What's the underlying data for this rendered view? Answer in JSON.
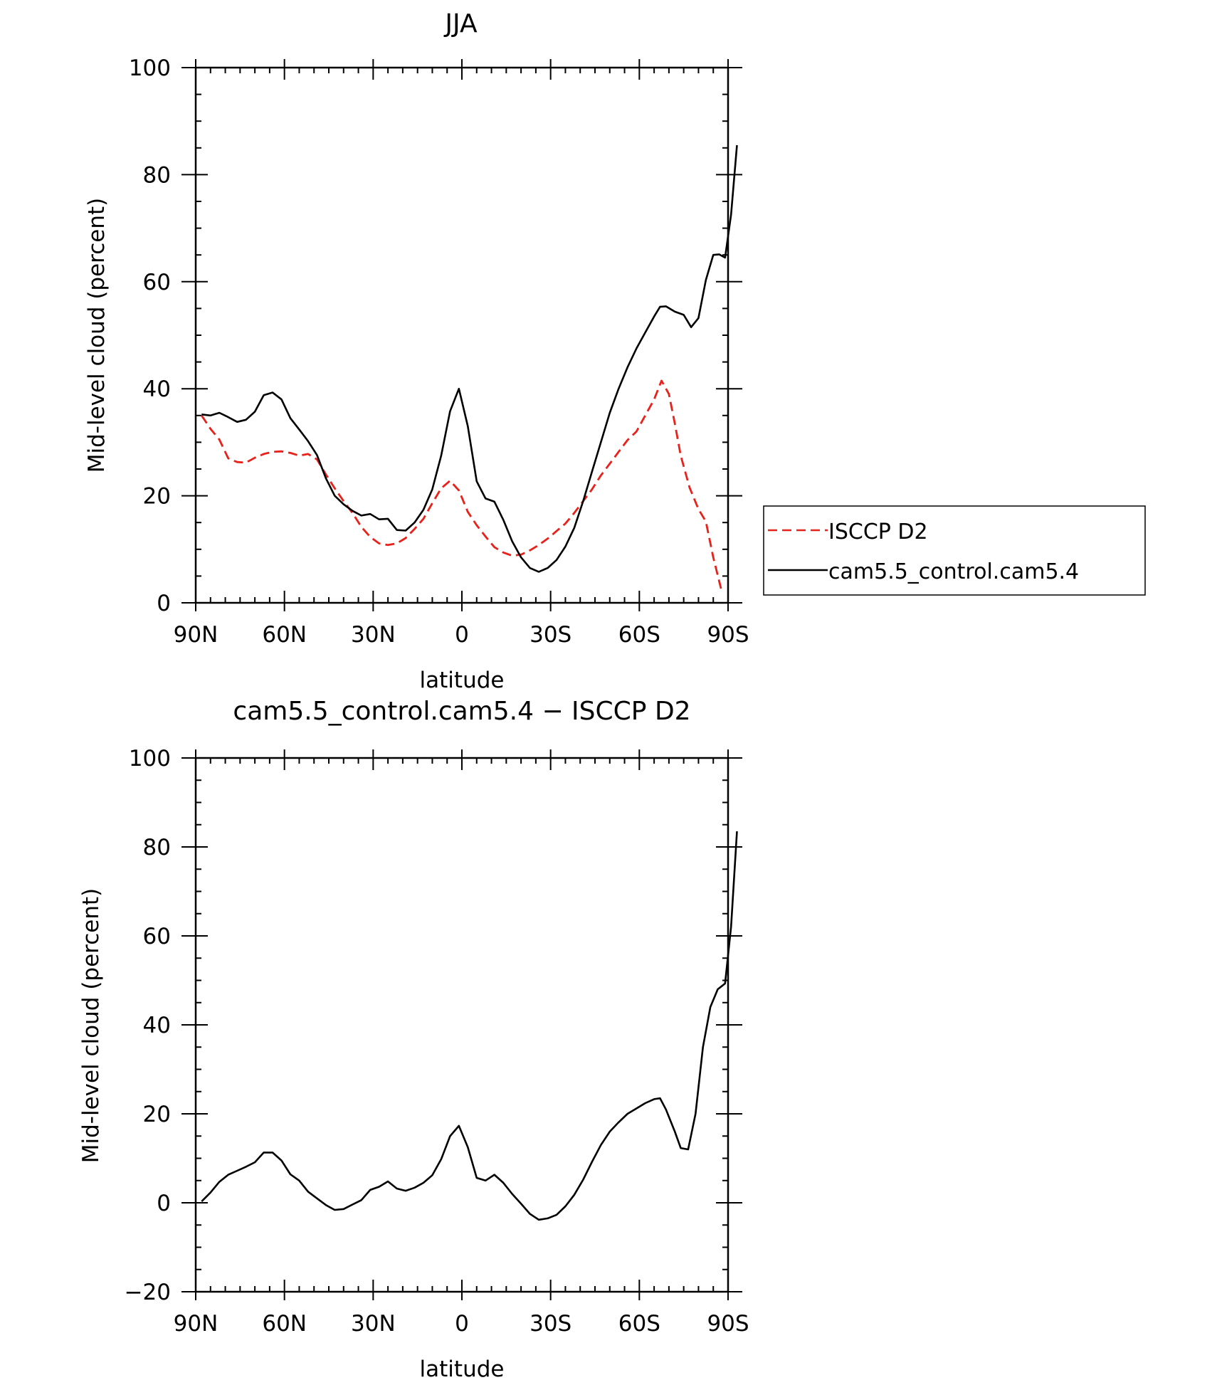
{
  "chart_data": [
    {
      "type": "line",
      "title": "JJA",
      "xlabel": "latitude",
      "ylabel": "Mid-level cloud (percent)",
      "xlim": [
        90,
        -90
      ],
      "ylim": [
        0,
        100
      ],
      "x_ticks": [
        {
          "value": 90,
          "label": "90N"
        },
        {
          "value": 60,
          "label": "60N"
        },
        {
          "value": 30,
          "label": "30N"
        },
        {
          "value": 0,
          "label": "0"
        },
        {
          "value": -30,
          "label": "30S"
        },
        {
          "value": -60,
          "label": "60S"
        },
        {
          "value": -90,
          "label": "90S"
        }
      ],
      "y_ticks": [
        0,
        20,
        40,
        60,
        80,
        100
      ],
      "legend_position": "right",
      "series": [
        {
          "name": "ISCCP D2",
          "color": "#e8211a",
          "dash": "dashed",
          "points": [
            [
              88,
              35
            ],
            [
              85,
              32.5
            ],
            [
              82,
              30.5
            ],
            [
              79,
              27
            ],
            [
              76,
              26.3
            ],
            [
              73,
              26.2
            ],
            [
              70,
              27.1
            ],
            [
              67,
              27.8
            ],
            [
              64,
              28.2
            ],
            [
              61,
              28.3
            ],
            [
              58,
              28
            ],
            [
              55,
              27.5
            ],
            [
              52,
              27.8
            ],
            [
              49,
              26.8
            ],
            [
              46,
              24
            ],
            [
              43,
              21.4
            ],
            [
              40,
              19
            ],
            [
              37,
              16.8
            ],
            [
              34,
              14.2
            ],
            [
              31,
              12.3
            ],
            [
              28,
              11.1
            ],
            [
              25,
              10.8
            ],
            [
              22,
              11.1
            ],
            [
              19,
              12.1
            ],
            [
              16,
              13.8
            ],
            [
              13,
              15.7
            ],
            [
              10,
              18.6
            ],
            [
              7,
              21.4
            ],
            [
              4,
              22.8
            ],
            [
              1,
              21
            ],
            [
              -2,
              17
            ],
            [
              -5,
              14.5
            ],
            [
              -8,
              12.4
            ],
            [
              -11,
              10.4
            ],
            [
              -14,
              9.4
            ],
            [
              -17,
              8.8
            ],
            [
              -20,
              9
            ],
            [
              -23,
              9.8
            ],
            [
              -26,
              10.8
            ],
            [
              -29,
              12
            ],
            [
              -32,
              13.4
            ],
            [
              -35,
              14.8
            ],
            [
              -38,
              16.8
            ],
            [
              -41,
              19
            ],
            [
              -44,
              21.2
            ],
            [
              -47,
              23.8
            ],
            [
              -50,
              26
            ],
            [
              -53,
              28.2
            ],
            [
              -56,
              30.4
            ],
            [
              -59,
              32
            ],
            [
              -62,
              35
            ],
            [
              -65,
              38
            ],
            [
              -67.5,
              41.5
            ],
            [
              -70,
              39
            ],
            [
              -72,
              33.5
            ],
            [
              -74,
              27.5
            ],
            [
              -77,
              21.5
            ],
            [
              -80,
              17.5
            ],
            [
              -82.5,
              15.2
            ],
            [
              -85,
              8.5
            ],
            [
              -88,
              1.8
            ]
          ]
        },
        {
          "name": "cam5.5_control.cam5.4",
          "color": "#000000",
          "dash": "solid",
          "points": [
            [
              88,
              35.2
            ],
            [
              85,
              35
            ],
            [
              82,
              35.5
            ],
            [
              79,
              34.7
            ],
            [
              76,
              33.8
            ],
            [
              73,
              34.2
            ],
            [
              70,
              35.7
            ],
            [
              67,
              38.8
            ],
            [
              64,
              39.3
            ],
            [
              61,
              38
            ],
            [
              58,
              34.5
            ],
            [
              55,
              32.4
            ],
            [
              52,
              30.2
            ],
            [
              49,
              27.6
            ],
            [
              46,
              23.3
            ],
            [
              43,
              20
            ],
            [
              40,
              18.4
            ],
            [
              37,
              17.2
            ],
            [
              34,
              16.3
            ],
            [
              31,
              16.6
            ],
            [
              28,
              15.6
            ],
            [
              25,
              15.7
            ],
            [
              22,
              13.6
            ],
            [
              19,
              13.5
            ],
            [
              16,
              15
            ],
            [
              13,
              17.4
            ],
            [
              10,
              21.2
            ],
            [
              7,
              27.5
            ],
            [
              4,
              35.8
            ],
            [
              1,
              40
            ],
            [
              -2,
              33
            ],
            [
              -5,
              22.7
            ],
            [
              -8,
              19.5
            ],
            [
              -11,
              18.9
            ],
            [
              -14,
              15.5
            ],
            [
              -17,
              11.5
            ],
            [
              -20,
              8.5
            ],
            [
              -23,
              6.5
            ],
            [
              -26,
              5.8
            ],
            [
              -29,
              6.5
            ],
            [
              -32,
              8
            ],
            [
              -35,
              10.5
            ],
            [
              -38,
              14
            ],
            [
              -41,
              19
            ],
            [
              -44,
              24.5
            ],
            [
              -47,
              30
            ],
            [
              -50,
              35.5
            ],
            [
              -53,
              40
            ],
            [
              -56,
              44
            ],
            [
              -59,
              47.5
            ],
            [
              -62,
              50.5
            ],
            [
              -65,
              53.5
            ],
            [
              -67,
              55.3
            ],
            [
              -69,
              55.4
            ],
            [
              -72,
              54.4
            ],
            [
              -75,
              53.8
            ],
            [
              -77.5,
              51.5
            ],
            [
              -80,
              53.2
            ],
            [
              -82.5,
              60.3
            ],
            [
              -85,
              65
            ],
            [
              -87,
              65.1
            ],
            [
              -89,
              64.5
            ],
            [
              -91,
              72.5
            ],
            [
              -93,
              85.5
            ]
          ]
        }
      ]
    },
    {
      "type": "line",
      "title": "cam5.5_control.cam5.4 − ISCCP D2",
      "xlabel": "latitude",
      "ylabel": "Mid-level cloud (percent)",
      "xlim": [
        90,
        -90
      ],
      "ylim": [
        -20,
        100
      ],
      "x_ticks": [
        {
          "value": 90,
          "label": "90N"
        },
        {
          "value": 60,
          "label": "60N"
        },
        {
          "value": 30,
          "label": "30N"
        },
        {
          "value": 0,
          "label": "0"
        },
        {
          "value": -30,
          "label": "30S"
        },
        {
          "value": -60,
          "label": "60S"
        },
        {
          "value": -90,
          "label": "90S"
        }
      ],
      "y_ticks": [
        -20,
        0,
        20,
        40,
        60,
        80,
        100
      ],
      "series": [
        {
          "color": "#000000",
          "dash": "solid",
          "points": [
            [
              88,
              0.3
            ],
            [
              85,
              2.3
            ],
            [
              82,
              4.7
            ],
            [
              79,
              6.3
            ],
            [
              76,
              7.2
            ],
            [
              73,
              8.1
            ],
            [
              70,
              9.1
            ],
            [
              67,
              11.3
            ],
            [
              64,
              11.3
            ],
            [
              61,
              9.5
            ],
            [
              58,
              6.4
            ],
            [
              55,
              5
            ],
            [
              52,
              2.5
            ],
            [
              49,
              1
            ],
            [
              46,
              -0.5
            ],
            [
              43,
              -1.6
            ],
            [
              40,
              -1.4
            ],
            [
              37,
              -0.4
            ],
            [
              34,
              0.6
            ],
            [
              31,
              2.9
            ],
            [
              28,
              3.6
            ],
            [
              25,
              4.8
            ],
            [
              22,
              3.2
            ],
            [
              19,
              2.7
            ],
            [
              16,
              3.4
            ],
            [
              13,
              4.5
            ],
            [
              10,
              6.2
            ],
            [
              7,
              9.8
            ],
            [
              4,
              15
            ],
            [
              1,
              17.3
            ],
            [
              -2,
              12.5
            ],
            [
              -5,
              5.6
            ],
            [
              -8,
              5
            ],
            [
              -11,
              6.3
            ],
            [
              -14,
              4.5
            ],
            [
              -17,
              2
            ],
            [
              -20,
              -0.2
            ],
            [
              -23,
              -2.5
            ],
            [
              -26,
              -3.8
            ],
            [
              -29,
              -3.5
            ],
            [
              -32,
              -2.7
            ],
            [
              -35,
              -0.8
            ],
            [
              -38,
              1.8
            ],
            [
              -41,
              5.2
            ],
            [
              -44,
              9.2
            ],
            [
              -47,
              13
            ],
            [
              -50,
              16
            ],
            [
              -53,
              18.1
            ],
            [
              -56,
              20
            ],
            [
              -59,
              21.2
            ],
            [
              -62,
              22.4
            ],
            [
              -65,
              23.3
            ],
            [
              -67,
              23.5
            ],
            [
              -69,
              21
            ],
            [
              -72,
              16
            ],
            [
              -74,
              12.3
            ],
            [
              -76.5,
              12
            ],
            [
              -79,
              20
            ],
            [
              -81.5,
              35
            ],
            [
              -84,
              44
            ],
            [
              -86.5,
              48
            ],
            [
              -89,
              49.3
            ],
            [
              -91,
              62
            ],
            [
              -93,
              83.5
            ]
          ]
        }
      ]
    }
  ]
}
